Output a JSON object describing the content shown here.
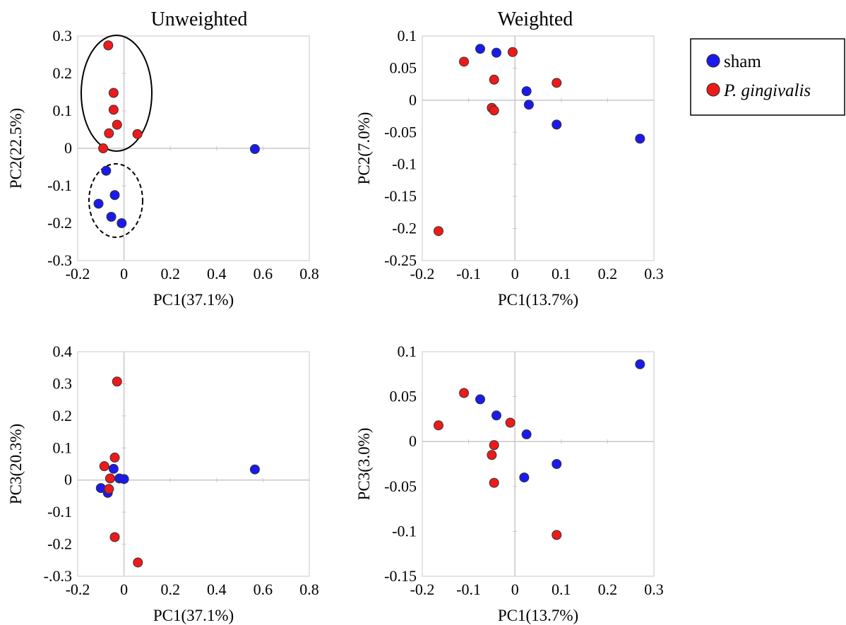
{
  "legend": {
    "items": [
      {
        "label": "sham",
        "italic": false,
        "color": "#1a1aee"
      },
      {
        "label": "P. gingivalis",
        "italic": true,
        "color": "#ee1a1a"
      }
    ]
  },
  "chart_data": [
    {
      "type": "scatter",
      "title": "Unweighted",
      "xlabel": "PC1(37.1%)",
      "ylabel": "PC2(22.5%)",
      "xlim": [
        -0.2,
        0.8
      ],
      "ylim": [
        -0.3,
        0.3
      ],
      "xticks": [
        -0.2,
        0,
        0.2,
        0.4,
        0.6,
        0.8
      ],
      "xtick_labels": [
        "-0.2",
        "0",
        "0.2",
        "0.4",
        "0.6",
        "0.8"
      ],
      "yticks": [
        -0.3,
        -0.2,
        -0.1,
        0,
        0.1,
        0.2,
        0.3
      ],
      "ytick_labels": [
        "-0.3",
        "-0.2",
        "-0.1",
        "0",
        "0.1",
        "0.2",
        "0.3"
      ],
      "series": [
        {
          "name": "sham",
          "color": "#1a1aee",
          "points": [
            [
              -0.077,
              -0.06
            ],
            [
              -0.04,
              -0.125
            ],
            [
              -0.11,
              -0.148
            ],
            [
              -0.055,
              -0.183
            ],
            [
              -0.01,
              -0.2
            ],
            [
              0.565,
              -0.002
            ]
          ]
        },
        {
          "name": "P. gingivalis",
          "color": "#ee1a1a",
          "points": [
            [
              -0.068,
              0.275
            ],
            [
              -0.045,
              0.148
            ],
            [
              -0.045,
              0.103
            ],
            [
              -0.03,
              0.063
            ],
            [
              -0.065,
              0.04
            ],
            [
              0.058,
              0.038
            ],
            [
              -0.09,
              0.0
            ]
          ]
        }
      ]
    },
    {
      "type": "scatter",
      "title": "Weighted",
      "xlabel": "PC1(13.7%)",
      "ylabel": "PC2(7.0%)",
      "xlim": [
        -0.2,
        0.3
      ],
      "ylim": [
        -0.25,
        0.1
      ],
      "xticks": [
        -0.2,
        -0.1,
        0,
        0.1,
        0.2,
        0.3
      ],
      "xtick_labels": [
        "-0.2",
        "-0.1",
        "0",
        "0.1",
        "0.2",
        "0.3"
      ],
      "yticks": [
        -0.25,
        -0.2,
        -0.15,
        -0.1,
        -0.05,
        0,
        0.05,
        0.1
      ],
      "ytick_labels": [
        "-0.25",
        "-0.2",
        "-0.15",
        "-0.1",
        "-0.05",
        "0",
        "0.05",
        "0.1"
      ],
      "series": [
        {
          "name": "sham",
          "color": "#1a1aee",
          "points": [
            [
              -0.075,
              0.08
            ],
            [
              -0.04,
              0.074
            ],
            [
              0.025,
              0.014
            ],
            [
              0.03,
              -0.007
            ],
            [
              0.09,
              -0.038
            ],
            [
              0.27,
              -0.06
            ]
          ]
        },
        {
          "name": "P. gingivalis",
          "color": "#ee1a1a",
          "points": [
            [
              -0.11,
              0.06
            ],
            [
              -0.005,
              0.075
            ],
            [
              -0.045,
              0.032
            ],
            [
              -0.05,
              -0.012
            ],
            [
              -0.045,
              -0.016
            ],
            [
              0.09,
              0.027
            ],
            [
              -0.165,
              -0.204
            ]
          ]
        }
      ]
    },
    {
      "type": "scatter",
      "title": "",
      "xlabel": "PC1(37.1%)",
      "ylabel": "PC3(20.3%)",
      "xlim": [
        -0.2,
        0.8
      ],
      "ylim": [
        -0.3,
        0.4
      ],
      "xticks": [
        -0.2,
        0,
        0.2,
        0.4,
        0.6,
        0.8
      ],
      "xtick_labels": [
        "-0.2",
        "0",
        "0.2",
        "0.4",
        "0.6",
        "0.8"
      ],
      "yticks": [
        -0.3,
        -0.2,
        -0.1,
        0,
        0.1,
        0.2,
        0.3,
        0.4
      ],
      "ytick_labels": [
        "-.0.3",
        "-0.2",
        "-0.1",
        "0",
        "0.1",
        "0.2",
        "0.3",
        "0.4"
      ],
      "series": [
        {
          "name": "sham",
          "color": "#1a1aee",
          "points": [
            [
              -0.045,
              0.035
            ],
            [
              -0.1,
              -0.025
            ],
            [
              -0.07,
              -0.04
            ],
            [
              -0.02,
              0.005
            ],
            [
              0.0,
              0.003
            ],
            [
              0.565,
              0.033
            ]
          ]
        },
        {
          "name": "P. gingivalis",
          "color": "#ee1a1a",
          "points": [
            [
              -0.03,
              0.307
            ],
            [
              -0.04,
              0.07
            ],
            [
              -0.085,
              0.043
            ],
            [
              -0.06,
              0.005
            ],
            [
              -0.065,
              -0.028
            ],
            [
              -0.04,
              -0.178
            ],
            [
              0.06,
              -0.257
            ]
          ]
        }
      ]
    },
    {
      "type": "scatter",
      "title": "",
      "xlabel": "PC1(13.7%)",
      "ylabel": "PC3(3.0%)",
      "xlim": [
        -0.2,
        0.3
      ],
      "ylim": [
        -0.15,
        0.1
      ],
      "xticks": [
        -0.2,
        -0.1,
        0,
        0.1,
        0.2,
        0.3
      ],
      "xtick_labels": [
        "-0.2",
        "-0.1",
        "0",
        "0.1",
        "0.2",
        "0.3"
      ],
      "yticks": [
        -0.15,
        -0.1,
        -0.05,
        0,
        0.05,
        0.1
      ],
      "ytick_labels": [
        "-0.15",
        "-0.1",
        "-0.05",
        "0",
        "0.05",
        "0.1"
      ],
      "series": [
        {
          "name": "sham",
          "color": "#1a1aee",
          "points": [
            [
              -0.075,
              0.047
            ],
            [
              -0.04,
              0.029
            ],
            [
              0.025,
              0.008
            ],
            [
              0.02,
              -0.04
            ],
            [
              0.09,
              -0.025
            ],
            [
              0.27,
              0.086
            ]
          ]
        },
        {
          "name": "P. gingivalis",
          "color": "#ee1a1a",
          "points": [
            [
              -0.11,
              0.054
            ],
            [
              -0.165,
              0.018
            ],
            [
              -0.01,
              0.021
            ],
            [
              -0.045,
              -0.004
            ],
            [
              -0.05,
              -0.015
            ],
            [
              -0.045,
              -0.046
            ],
            [
              0.09,
              -0.104
            ]
          ]
        }
      ]
    }
  ]
}
